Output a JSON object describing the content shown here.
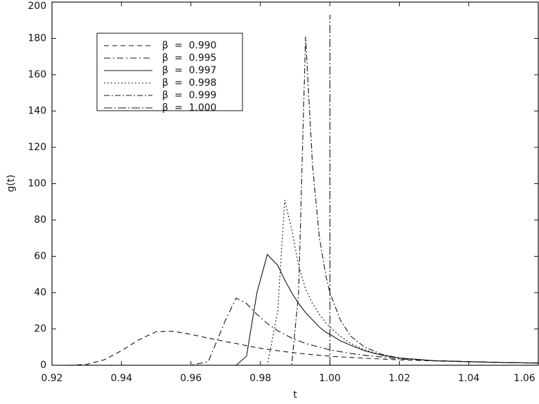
{
  "chart_data": {
    "type": "line",
    "xlabel": "t",
    "ylabel": "g(t)",
    "xlim": [
      0.92,
      1.06
    ],
    "ylim": [
      0,
      200
    ],
    "xticks": [
      0.92,
      0.94,
      0.96,
      0.98,
      {
        "value": 1,
        "label": "1.00"
      },
      1.02,
      1.04,
      1.06
    ],
    "yticks": [
      0,
      20,
      40,
      60,
      80,
      100,
      120,
      140,
      160,
      180,
      200
    ],
    "legend": "upper left",
    "x": [
      0.92,
      0.925,
      0.93,
      0.935,
      0.94,
      0.945,
      0.95,
      0.955,
      0.96,
      0.965,
      0.97,
      0.973,
      0.976,
      0.979,
      0.982,
      0.985,
      0.987,
      0.989,
      0.991,
      0.993,
      0.995,
      0.997,
      0.999,
      1.0,
      1.003,
      1.006,
      1.01,
      1.015,
      1.02,
      1.03,
      1.04,
      1.05,
      1.06
    ],
    "series": [
      {
        "name": "β  =  0.990",
        "color": "#111111",
        "dash": "7,5",
        "values": [
          0,
          0,
          0.5,
          3,
          8,
          14,
          18.5,
          18.7,
          17,
          15,
          13,
          12,
          10.8,
          9.7,
          8.8,
          8,
          7.5,
          7,
          6.6,
          6.2,
          5.8,
          5.5,
          5.2,
          5,
          4.6,
          4.3,
          3.9,
          3.4,
          3,
          2.4,
          1.9,
          1.5,
          1.2
        ]
      },
      {
        "name": "β  =  0.995",
        "color": "#111111",
        "dash": "9,4,2,4",
        "values": [
          0,
          0,
          0,
          0,
          0,
          0,
          0,
          0,
          0,
          2,
          25,
          37,
          34,
          28,
          23,
          19,
          17,
          15,
          13.5,
          12,
          11,
          10,
          9,
          8.5,
          7.5,
          6.5,
          5.5,
          4.5,
          3.5,
          2.5,
          2,
          1.5,
          1.2
        ]
      },
      {
        "name": "β  =  0.997",
        "color": "#111111",
        "dash": "none",
        "values": [
          0,
          0,
          0,
          0,
          0,
          0,
          0,
          0,
          0,
          0,
          0,
          0,
          5,
          40,
          61,
          55,
          47,
          40,
          34,
          29,
          25,
          21,
          18,
          17,
          13.5,
          11,
          8,
          5.5,
          4,
          2.5,
          2,
          1.5,
          1.2
        ]
      },
      {
        "name": "β  =  0.998",
        "color": "#111111",
        "dash": "2,3",
        "values": [
          0,
          0,
          0,
          0,
          0,
          0,
          0,
          0,
          0,
          0,
          0,
          0,
          0,
          0,
          0,
          30,
          91,
          75,
          55,
          42,
          34,
          28,
          23,
          21,
          16,
          12,
          8.5,
          5.5,
          4,
          2.5,
          2,
          1.5,
          1.2
        ]
      },
      {
        "name": "β  =  0.999",
        "color": "#111111",
        "dash": "8,3,2,3",
        "values": [
          0,
          0,
          0,
          0,
          0,
          0,
          0,
          0,
          0,
          0,
          0,
          0,
          0,
          0,
          0,
          0,
          0,
          0,
          40,
          181,
          110,
          70,
          48,
          40,
          25,
          16,
          10,
          6,
          4,
          2.5,
          2,
          1.5,
          1.2
        ]
      },
      {
        "name": "β  =  1.000",
        "color": "#111111",
        "dash": "12,3,2,3",
        "x": [
          1.0,
          1.0
        ],
        "values": [
          0,
          193
        ]
      }
    ]
  }
}
